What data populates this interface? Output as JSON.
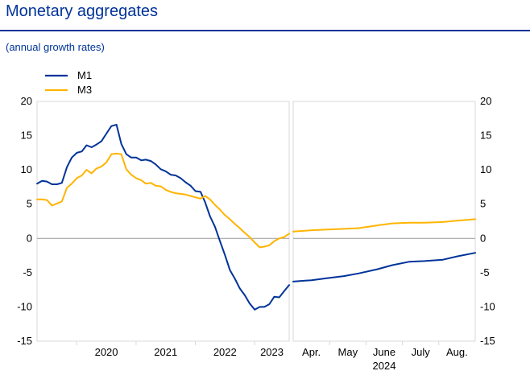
{
  "title": "Monetary aggregates",
  "subtitle": "(annual growth rates)",
  "colors": {
    "M1": "#003399",
    "M3": "#FFB400",
    "brand": "#003399"
  },
  "chart_data": [
    {
      "type": "line",
      "ylim": [
        -15,
        20
      ],
      "y_ticks": [
        20,
        15,
        10,
        5,
        0,
        -5,
        -10,
        -15
      ],
      "grid": false,
      "legend": "top-left",
      "x_tick_labels": [
        "2020",
        "2021",
        "2022",
        "2023"
      ],
      "x_range": [
        "2019-05",
        "2023-08"
      ],
      "series": [
        {
          "name": "M1",
          "x": [
            "2019-05",
            "2019-06",
            "2019-07",
            "2019-08",
            "2019-09",
            "2019-10",
            "2019-11",
            "2019-12",
            "2020-01",
            "2020-02",
            "2020-03",
            "2020-04",
            "2020-05",
            "2020-06",
            "2020-07",
            "2020-08",
            "2020-09",
            "2020-10",
            "2020-11",
            "2020-12",
            "2021-01",
            "2021-02",
            "2021-03",
            "2021-04",
            "2021-05",
            "2021-06",
            "2021-07",
            "2021-08",
            "2021-09",
            "2021-10",
            "2021-11",
            "2021-12",
            "2022-01",
            "2022-02",
            "2022-03",
            "2022-04",
            "2022-05",
            "2022-06",
            "2022-07",
            "2022-08",
            "2022-09",
            "2022-10",
            "2022-11",
            "2022-12",
            "2023-01",
            "2023-02",
            "2023-03",
            "2023-04",
            "2023-05",
            "2023-06",
            "2023-07",
            "2023-08"
          ],
          "values": [
            8.0,
            8.4,
            8.3,
            7.9,
            7.9,
            8.1,
            10.4,
            11.8,
            12.5,
            12.7,
            13.6,
            13.3,
            13.7,
            14.2,
            15.3,
            16.4,
            16.6,
            13.8,
            12.3,
            11.8,
            11.8,
            11.4,
            11.5,
            11.3,
            10.8,
            10.1,
            9.8,
            9.3,
            9.2,
            8.8,
            8.2,
            7.7,
            6.9,
            6.8,
            5.3,
            3.2,
            1.7,
            -0.4,
            -2.4,
            -4.6,
            -5.9,
            -7.3,
            -8.3,
            -9.5,
            -10.4,
            -10.0,
            -10.0,
            -9.6,
            -8.5,
            -8.6,
            -7.7,
            -6.8
          ]
        },
        {
          "name": "M3",
          "x": [
            "2019-05",
            "2019-06",
            "2019-07",
            "2019-08",
            "2019-09",
            "2019-10",
            "2019-11",
            "2019-12",
            "2020-01",
            "2020-02",
            "2020-03",
            "2020-04",
            "2020-05",
            "2020-06",
            "2020-07",
            "2020-08",
            "2020-09",
            "2020-10",
            "2020-11",
            "2020-12",
            "2021-01",
            "2021-02",
            "2021-03",
            "2021-04",
            "2021-05",
            "2021-06",
            "2021-07",
            "2021-08",
            "2021-09",
            "2021-10",
            "2021-11",
            "2021-12",
            "2022-01",
            "2022-02",
            "2022-03",
            "2022-04",
            "2022-05",
            "2022-06",
            "2022-07",
            "2022-08",
            "2022-09",
            "2022-10",
            "2022-11",
            "2022-12",
            "2023-01",
            "2023-02",
            "2023-03",
            "2023-04",
            "2023-05",
            "2023-06",
            "2023-07",
            "2023-08"
          ],
          "values": [
            5.7,
            5.7,
            5.6,
            4.8,
            5.1,
            5.4,
            7.4,
            8.0,
            8.8,
            9.2,
            10.0,
            9.5,
            10.2,
            10.5,
            11.1,
            12.3,
            12.4,
            12.3,
            10.1,
            9.3,
            8.8,
            8.5,
            8.0,
            8.1,
            7.7,
            7.6,
            7.1,
            6.8,
            6.6,
            6.5,
            6.4,
            6.2,
            6.0,
            5.8,
            6.2,
            5.7,
            4.9,
            4.2,
            3.4,
            2.8,
            2.1,
            1.5,
            0.8,
            0.2,
            -0.6,
            -1.3,
            -1.2,
            -1.0,
            -0.4,
            0.0,
            0.2,
            0.7
          ]
        }
      ]
    },
    {
      "type": "line",
      "ylim": [
        -15,
        20
      ],
      "y_ticks": [
        20,
        15,
        10,
        5,
        0,
        -5,
        -10,
        -15
      ],
      "grid": false,
      "x_tick_labels": [
        "Apr.",
        "May",
        "June\n2024",
        "July",
        "Aug."
      ],
      "x_range": [
        "2024-03-15",
        "2024-08-31"
      ],
      "series": [
        {
          "name": "M1",
          "x": [
            "2024-03-15",
            "2024-04-01",
            "2024-04-15",
            "2024-05-01",
            "2024-05-15",
            "2024-06-01",
            "2024-06-15",
            "2024-07-01",
            "2024-07-15",
            "2024-08-01",
            "2024-08-15",
            "2024-08-31"
          ],
          "values": [
            -6.3,
            -6.1,
            -5.8,
            -5.5,
            -5.1,
            -4.5,
            -3.9,
            -3.4,
            -3.3,
            -3.1,
            -2.6,
            -2.1
          ]
        },
        {
          "name": "M3",
          "x": [
            "2024-03-15",
            "2024-04-01",
            "2024-04-15",
            "2024-05-01",
            "2024-05-15",
            "2024-06-01",
            "2024-06-15",
            "2024-07-01",
            "2024-07-15",
            "2024-08-01",
            "2024-08-15",
            "2024-08-31"
          ],
          "values": [
            1.0,
            1.2,
            1.3,
            1.4,
            1.5,
            1.9,
            2.2,
            2.3,
            2.3,
            2.4,
            2.6,
            2.8
          ]
        }
      ]
    }
  ]
}
